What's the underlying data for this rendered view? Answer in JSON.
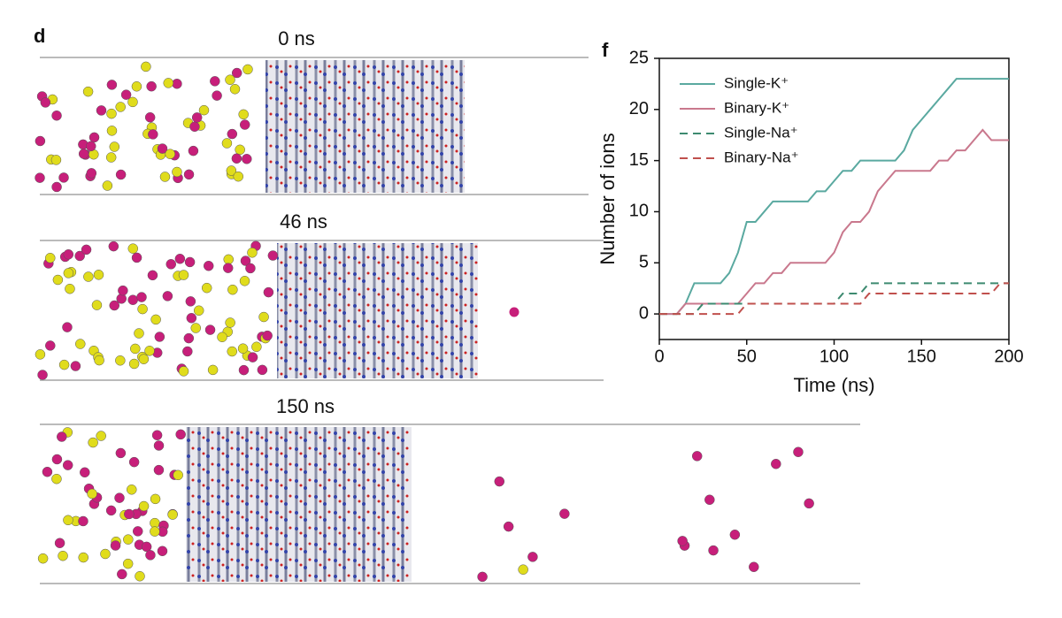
{
  "figure": {
    "panel_labels": [
      "d",
      "f"
    ],
    "snapshot_times": [
      "0 ns",
      "46 ns",
      "150 ns"
    ]
  },
  "chart_data": {
    "type": "line",
    "x_label": "Time (ns)",
    "y_label": "Number of ions",
    "x": [
      0,
      5,
      10,
      15,
      20,
      25,
      30,
      35,
      40,
      45,
      50,
      55,
      60,
      65,
      70,
      75,
      80,
      85,
      90,
      95,
      100,
      105,
      110,
      115,
      120,
      125,
      130,
      135,
      140,
      145,
      150,
      155,
      160,
      165,
      170,
      175,
      180,
      185,
      190,
      195,
      200
    ],
    "series": [
      {
        "name": "Single-K⁺",
        "color": "#5aa9a0",
        "dash": false,
        "values": [
          0,
          0,
          0,
          1,
          3,
          3,
          3,
          3,
          4,
          6,
          9,
          9,
          10,
          11,
          11,
          11,
          11,
          11,
          12,
          12,
          13,
          14,
          14,
          15,
          15,
          15,
          15,
          15,
          16,
          18,
          19,
          20,
          21,
          22,
          23,
          23,
          23,
          23,
          23,
          23,
          23
        ]
      },
      {
        "name": "Binary-K⁺",
        "color": "#c9788d",
        "dash": false,
        "values": [
          0,
          0,
          0,
          1,
          1,
          1,
          1,
          1,
          1,
          1,
          2,
          3,
          3,
          4,
          4,
          5,
          5,
          5,
          5,
          5,
          6,
          8,
          9,
          9,
          10,
          12,
          13,
          14,
          14,
          14,
          14,
          14,
          15,
          15,
          16,
          16,
          17,
          18,
          17,
          17,
          17
        ]
      },
      {
        "name": "Single-Na⁺",
        "color": "#3d8a70",
        "dash": true,
        "values": [
          0,
          0,
          0,
          0,
          0,
          1,
          1,
          1,
          1,
          1,
          1,
          1,
          1,
          1,
          1,
          1,
          1,
          1,
          1,
          1,
          1,
          2,
          2,
          2,
          3,
          3,
          3,
          3,
          3,
          3,
          3,
          3,
          3,
          3,
          3,
          3,
          3,
          3,
          3,
          3,
          3
        ]
      },
      {
        "name": "Binary-Na⁺",
        "color": "#c0504d",
        "dash": true,
        "values": [
          0,
          0,
          0,
          0,
          0,
          0,
          0,
          0,
          0,
          0,
          1,
          1,
          1,
          1,
          1,
          1,
          1,
          1,
          1,
          1,
          1,
          1,
          1,
          1,
          2,
          2,
          2,
          2,
          2,
          2,
          2,
          2,
          2,
          2,
          2,
          2,
          2,
          2,
          2,
          3,
          3
        ]
      }
    ],
    "xlim": [
      0,
      200
    ],
    "xticks": [
      0,
      50,
      100,
      150,
      200
    ],
    "ylim": [
      -2.5,
      25
    ],
    "yticks": [
      0,
      5,
      10,
      15,
      20,
      25
    ]
  }
}
